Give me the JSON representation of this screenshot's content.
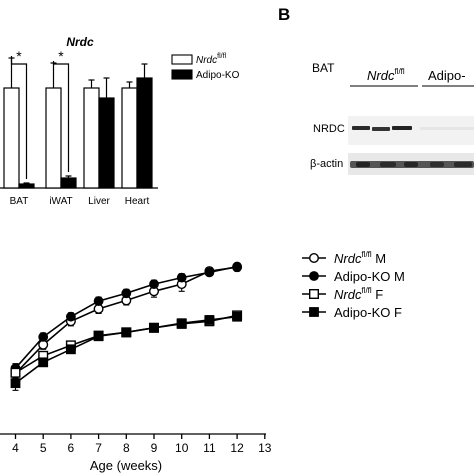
{
  "panel_label_b": "B",
  "chart_data": [
    {
      "type": "bar",
      "title": "Nrdc",
      "categories": [
        "BAT",
        "iWAT",
        "Liver",
        "Heart"
      ],
      "ylim": [
        0,
        1.5
      ],
      "series": [
        {
          "name": "Nrdc fl/fl",
          "values": [
            1.0,
            1.0,
            1.0,
            1.0
          ],
          "errors": [
            0.3,
            0.25,
            0.08,
            0.06
          ],
          "color": "#ffffff"
        },
        {
          "name": "Adipo-KO",
          "values": [
            0.04,
            0.1,
            0.9,
            1.1
          ],
          "errors": [
            0.01,
            0.02,
            0.2,
            0.14
          ],
          "color": "#000000"
        }
      ],
      "significance": [
        {
          "category": "BAT",
          "label": "*"
        },
        {
          "category": "iWAT",
          "label": "*"
        }
      ],
      "legend": [
        {
          "italic": "Nrdc",
          "sup": "fl/fl",
          "rest": ""
        },
        {
          "italic": "",
          "sup": "",
          "rest": "Adipo-KO"
        }
      ]
    },
    {
      "type": "line",
      "xlabel": "Age (weeks)",
      "x": [
        4,
        5,
        6,
        7,
        8,
        9,
        10,
        11,
        12
      ],
      "xticks": [
        "4",
        "5",
        "6",
        "7",
        "8",
        "9",
        "10",
        "11",
        "12",
        "13"
      ],
      "xlim": [
        3.65,
        13
      ],
      "ylim": [
        0,
        31
      ],
      "grid": false,
      "legend_position": "top-right",
      "series": [
        {
          "name": "Nrdc fl/fl M",
          "legend": {
            "italic": "Nrdc",
            "sup": "fl/fl",
            "rest": " M"
          },
          "marker": "open-circle",
          "values": [
            9.3,
            13.7,
            17.3,
            19.2,
            20.5,
            21.9,
            23.0,
            25.0,
            25.6
          ],
          "errors": [
            0.7,
            0.7,
            0.7,
            0.7,
            0.7,
            0.9,
            1.1,
            0.5,
            0.6
          ]
        },
        {
          "name": "Adipo-KO M",
          "legend": {
            "italic": "",
            "sup": "",
            "rest": "Adipo-KO M"
          },
          "marker": "filled-circle",
          "values": [
            10.1,
            14.9,
            18.0,
            20.4,
            21.6,
            23.0,
            24.0,
            24.8,
            25.7
          ],
          "errors": [
            0.7,
            0.6,
            0.6,
            0.6,
            0.6,
            0.6,
            0.6,
            0.5,
            0.5
          ]
        },
        {
          "name": "Nrdc fl/fl F",
          "legend": {
            "italic": "Nrdc",
            "sup": "fl/fl",
            "rest": " F"
          },
          "marker": "open-square",
          "values": [
            9.4,
            12.0,
            13.6,
            15.1,
            15.6,
            16.3,
            16.9,
            17.3,
            18.2
          ],
          "errors": [
            0.6,
            0.5,
            0.4,
            0.4,
            0.3,
            0.3,
            0.3,
            0.3,
            0.3
          ]
        },
        {
          "name": "Adipo-KO F",
          "legend": {
            "italic": "",
            "sup": "",
            "rest": "Adipo-KO F"
          },
          "marker": "filled-square",
          "values": [
            7.8,
            11.0,
            13.0,
            15.0,
            15.6,
            16.3,
            17.0,
            17.5,
            18.0
          ],
          "errors": [
            1.1,
            0.6,
            0.5,
            0.4,
            0.3,
            0.3,
            0.3,
            0.3,
            0.3
          ]
        }
      ]
    }
  ],
  "blot": {
    "tissue": "BAT",
    "group1": {
      "italic": "Nrdc",
      "sup": "fl/fl"
    },
    "group2": "Adipo-",
    "rows": [
      "NRDC",
      "β-actin"
    ]
  }
}
